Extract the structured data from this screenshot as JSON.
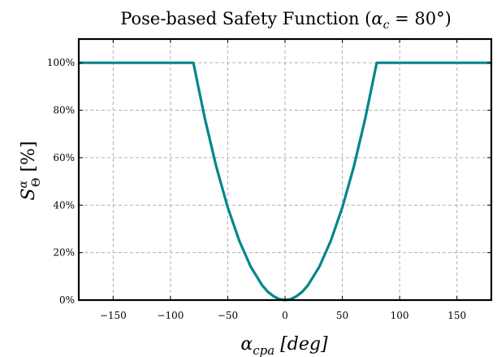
{
  "chart_data": {
    "type": "line",
    "title": "Pose-based Safety Function (αc = 80°)",
    "xlabel": "αcpa  [deg]",
    "ylabel": "SΘα  [%]",
    "xlim": [
      -180,
      180
    ],
    "ylim": [
      0,
      1.1
    ],
    "xticks": [
      -150,
      -100,
      -50,
      0,
      50,
      100,
      150
    ],
    "xtick_labels": [
      "−150",
      "−100",
      "−50",
      "0",
      "50",
      "100",
      "150"
    ],
    "yticks": [
      0,
      0.2,
      0.4,
      0.6,
      0.8,
      1.0
    ],
    "ytick_labels": [
      "0%",
      "20%",
      "40%",
      "60%",
      "80%",
      "100%"
    ],
    "grid": true,
    "line_color": "#00868b",
    "series": [
      {
        "x": [
          -180,
          -80,
          -70,
          -60,
          -50,
          -40,
          -30,
          -20,
          -15,
          -10,
          -5,
          0,
          5,
          10,
          15,
          20,
          30,
          40,
          50,
          60,
          70,
          80,
          180
        ],
        "y": [
          1.0,
          1.0,
          0.766,
          0.5625,
          0.391,
          0.25,
          0.141,
          0.0625,
          0.035,
          0.016,
          0.004,
          0.0,
          0.004,
          0.016,
          0.035,
          0.0625,
          0.141,
          0.25,
          0.391,
          0.5625,
          0.766,
          1.0,
          1.0
        ]
      }
    ]
  }
}
